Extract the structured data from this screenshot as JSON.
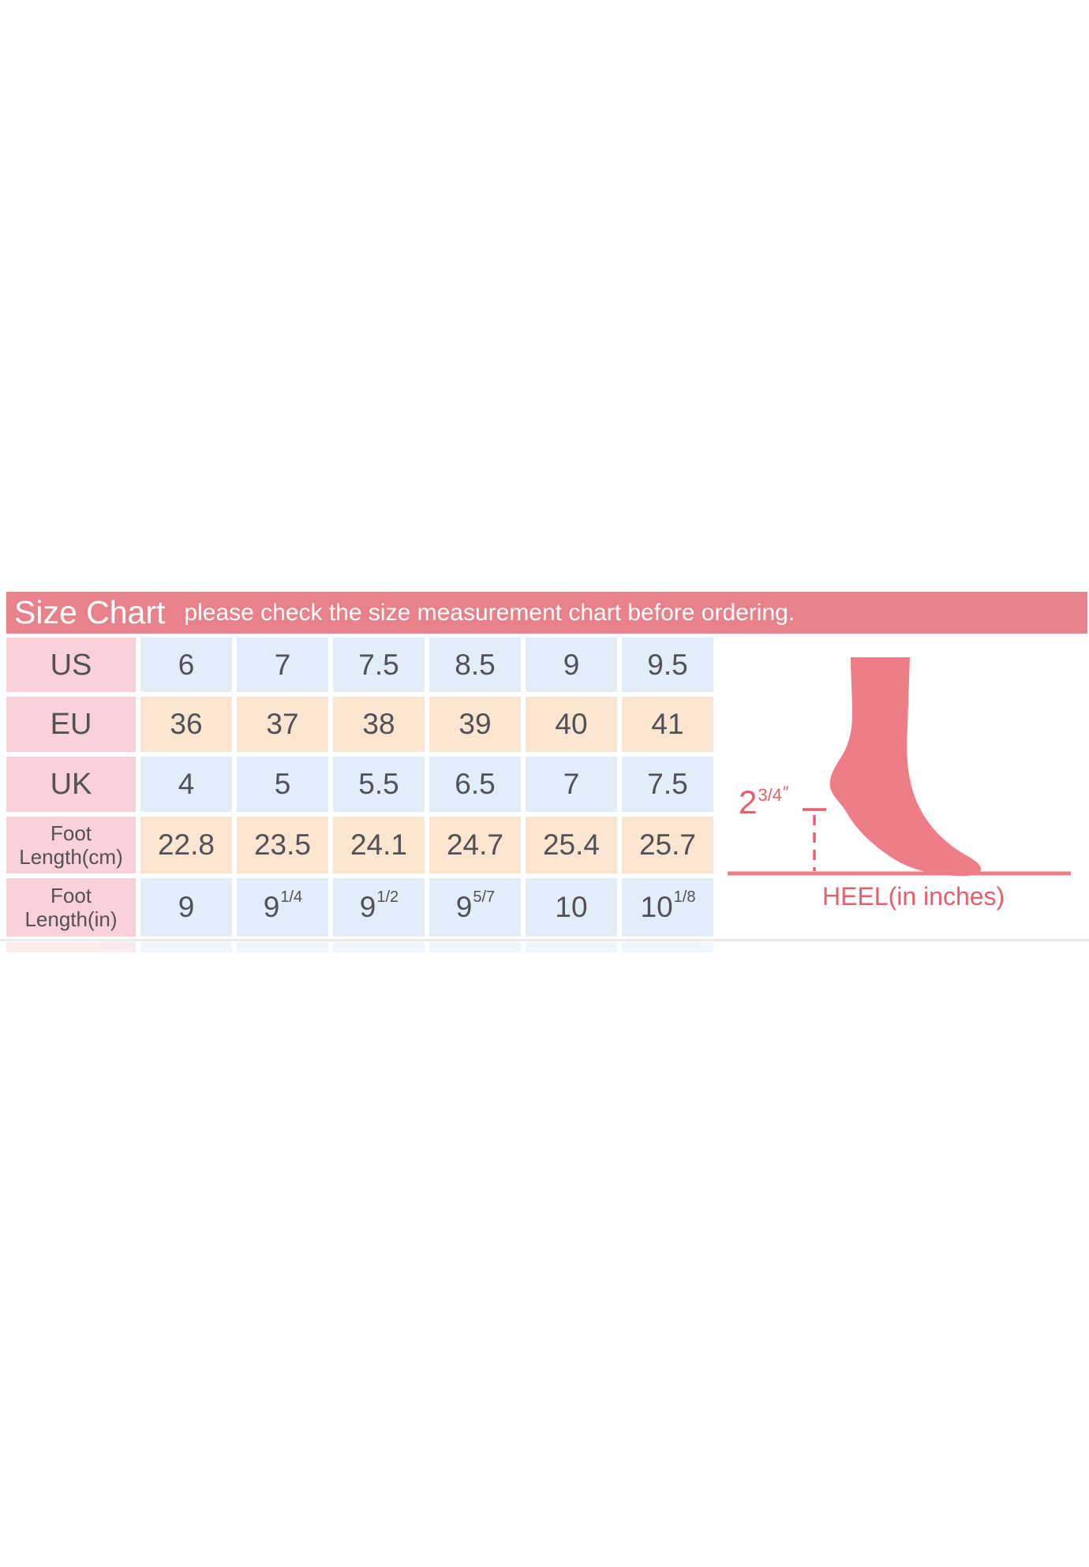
{
  "page": {
    "background": "#ffffff"
  },
  "header": {
    "title": "Size Chart",
    "subtitle": "please check the size measurement chart before ordering.",
    "bg": "#e8818a",
    "text_color": "#ffffff"
  },
  "table": {
    "colors": {
      "label": "#f8d2d8",
      "blue": "#e2edfa",
      "cream": "#fae5d0",
      "text": "#515156"
    },
    "rows": [
      {
        "label_lines": [
          "US"
        ],
        "tint": "blue",
        "values": [
          "6",
          "7",
          "7.5",
          "8.5",
          "9",
          "9.5"
        ]
      },
      {
        "label_lines": [
          "EU"
        ],
        "tint": "cream",
        "values": [
          "36",
          "37",
          "38",
          "39",
          "40",
          "41"
        ]
      },
      {
        "label_lines": [
          "UK"
        ],
        "tint": "blue",
        "values": [
          "4",
          "5",
          "5.5",
          "6.5",
          "7",
          "7.5"
        ]
      },
      {
        "label_lines": [
          "Foot",
          "Length(cm)"
        ],
        "tint": "cream",
        "values": [
          "22.8",
          "23.5",
          "24.1",
          "24.7",
          "25.4",
          "25.7"
        ]
      },
      {
        "label_lines": [
          "Foot",
          "Length(in)"
        ],
        "tint": "blue",
        "values": [
          "9",
          "9^1/4",
          "9^1/2",
          "9^5/7",
          "10",
          "10^1/8"
        ]
      }
    ]
  },
  "illustration": {
    "foot_color": "#ee7d87",
    "accent_color": "#e4606e",
    "baseline_color": "#ed7f88",
    "heel_base": "2",
    "heel_fraction": "3/4",
    "heel_unit": "″",
    "caption": "HEEL(in inches)"
  },
  "divider_color": "#e9e9e9",
  "chart_data": {
    "type": "table",
    "title": "Size Chart",
    "subtitle": "please check the size measurement chart before ordering.",
    "row_headers": [
      "US",
      "EU",
      "UK",
      "Foot Length(cm)",
      "Foot Length(in)"
    ],
    "rows": [
      [
        "6",
        "7",
        "7.5",
        "8.5",
        "9",
        "9.5"
      ],
      [
        "36",
        "37",
        "38",
        "39",
        "40",
        "41"
      ],
      [
        "4",
        "5",
        "5.5",
        "6.5",
        "7",
        "7.5"
      ],
      [
        "22.8",
        "23.5",
        "24.1",
        "24.7",
        "25.4",
        "25.7"
      ],
      [
        "9",
        "9 1/4",
        "9 1/2",
        "9 5/7",
        "10",
        "10 1/8"
      ]
    ],
    "annotation": {
      "heel_height_inches": "2 3/4\"",
      "axis_caption": "HEEL(in inches)"
    }
  }
}
